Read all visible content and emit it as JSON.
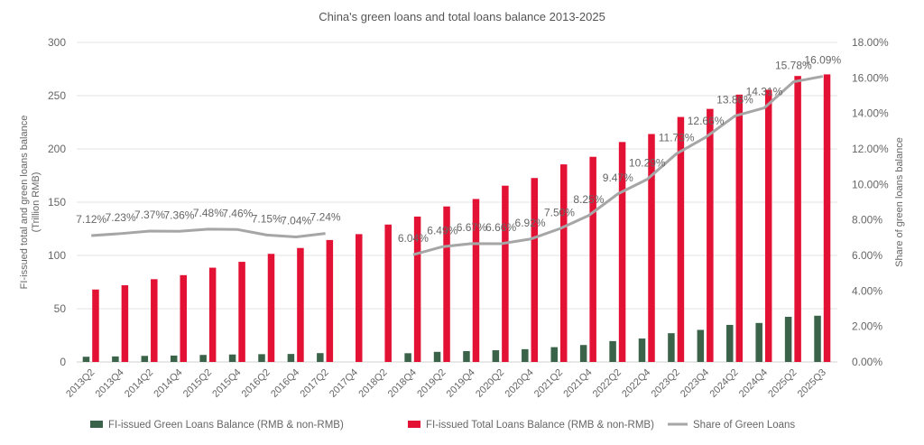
{
  "chart_data": {
    "type": "bar+line",
    "title": "China's green loans and total loans balance 2013-2025",
    "ylabel": "FI-issued total and green loans balance (Trillion RMB)",
    "ylabel_right": "Share of green loans balance",
    "ylim": [
      0,
      300
    ],
    "yticks": [
      "0",
      "50",
      "100",
      "150",
      "200",
      "250",
      "300"
    ],
    "ylim_right": [
      0,
      18
    ],
    "yticks_right": [
      "0.00%",
      "2.00%",
      "4.00%",
      "6.00%",
      "8.00%",
      "10.00%",
      "12.00%",
      "14.00%",
      "16.00%",
      "18.00%"
    ],
    "grid": true,
    "legend_position": "bottom",
    "categories": [
      "2013Q2",
      "2013Q4",
      "2014Q2",
      "2014Q4",
      "2015Q2",
      "2015Q4",
      "2016Q2",
      "2016Q4",
      "2017Q2",
      "2017Q4",
      "2018Q2",
      "2018Q4",
      "2019Q2",
      "2019Q4",
      "2020Q2",
      "2020Q4",
      "2021Q2",
      "2021Q4",
      "2022Q2",
      "2022Q4",
      "2023Q2",
      "2023Q4",
      "2024Q2",
      "2024Q4",
      "2025Q2",
      "2025Q3"
    ],
    "series": [
      {
        "name": "FI-issued Green Loans Balance (RMB & non-RMB)",
        "type": "bar",
        "color": "#3a6349",
        "values": [
          4.9,
          5.2,
          5.7,
          6.0,
          6.6,
          7.0,
          7.3,
          7.5,
          8.3,
          null,
          null,
          8.2,
          9.5,
          10.2,
          11.0,
          12.0,
          13.9,
          15.9,
          19.6,
          22.0,
          27.0,
          30.1,
          34.8,
          36.6,
          42.4,
          43.4
        ]
      },
      {
        "name": "FI-issued Total Loans Balance (RMB & non-RMB)",
        "type": "bar",
        "color": "#e31133",
        "values": [
          68,
          72,
          77.7,
          81.5,
          88.5,
          94,
          101.5,
          107,
          114.5,
          120,
          129,
          136.5,
          146,
          153,
          165.5,
          172.7,
          185.5,
          192.6,
          206.5,
          214,
          230,
          237.6,
          251,
          255.6,
          268.5,
          270
        ]
      },
      {
        "name": "Share of Green Loans",
        "type": "line",
        "axis": "right",
        "color": "#a6a6a6",
        "values": [
          7.12,
          7.23,
          7.37,
          7.36,
          7.48,
          7.46,
          7.15,
          7.04,
          7.24,
          null,
          null,
          6.04,
          6.49,
          6.67,
          6.66,
          6.92,
          7.5,
          8.25,
          9.47,
          10.29,
          11.73,
          12.66,
          13.86,
          14.31,
          15.78,
          16.09
        ],
        "labels": [
          "7.12%",
          "7.23%",
          "7.37%",
          "7.36%",
          "7.48%",
          "7.46%",
          "7.15%",
          "7.04%",
          "7.24%",
          "",
          "",
          "6.04%",
          "6.49%",
          "6.67%",
          "6.66%",
          "6.92%",
          "7.50%",
          "8.25%",
          "9.47%",
          "10.29%",
          "11.73%",
          "12.66%",
          "13.86%",
          "14.31%",
          "15.78%",
          "16.09%"
        ]
      }
    ]
  }
}
